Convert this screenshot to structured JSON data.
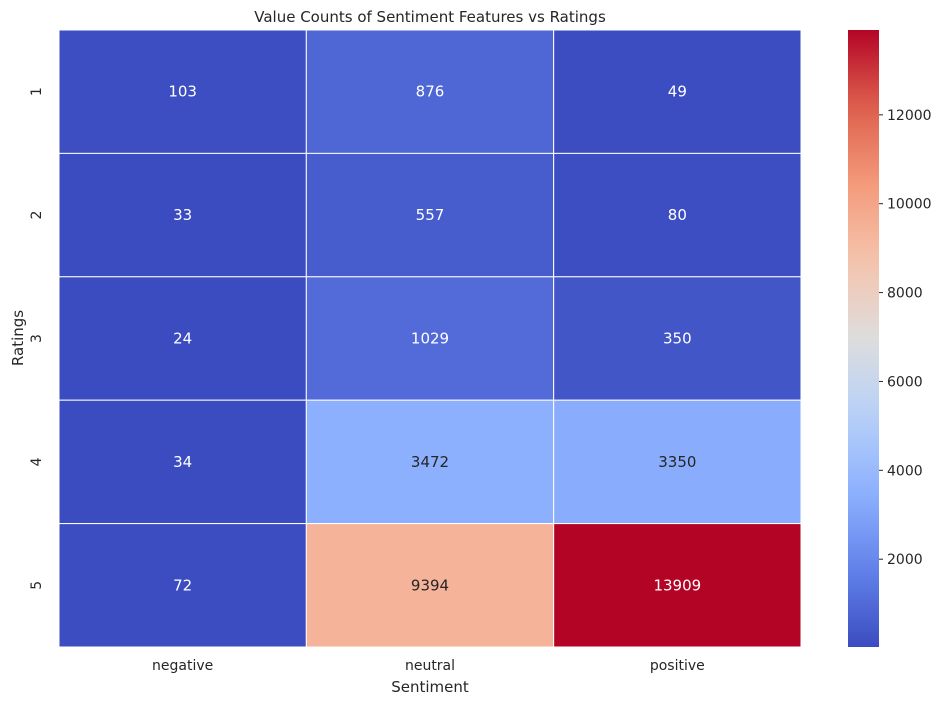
{
  "chart_data": {
    "type": "heatmap",
    "title": "Value Counts of Sentiment Features vs Ratings",
    "xlabel": "Sentiment",
    "ylabel": "Ratings",
    "x_categories": [
      "negative",
      "neutral",
      "positive"
    ],
    "y_categories": [
      "1",
      "2",
      "3",
      "4",
      "5"
    ],
    "values": [
      [
        103,
        876,
        49
      ],
      [
        33,
        557,
        80
      ],
      [
        24,
        1029,
        350
      ],
      [
        34,
        3472,
        3350
      ],
      [
        72,
        9394,
        13909
      ]
    ],
    "colorbar": {
      "colormap": "coolwarm",
      "min": 24,
      "max": 13909,
      "ticks": [
        2000,
        4000,
        6000,
        8000,
        10000,
        12000
      ],
      "tick_labels": [
        "2000",
        "4000",
        "6000",
        "8000",
        "10000",
        "12000"
      ]
    },
    "annotation_colors": {
      "light": "#ffffff",
      "dark": "#262626"
    },
    "grid_line_color": "#ffffff"
  }
}
